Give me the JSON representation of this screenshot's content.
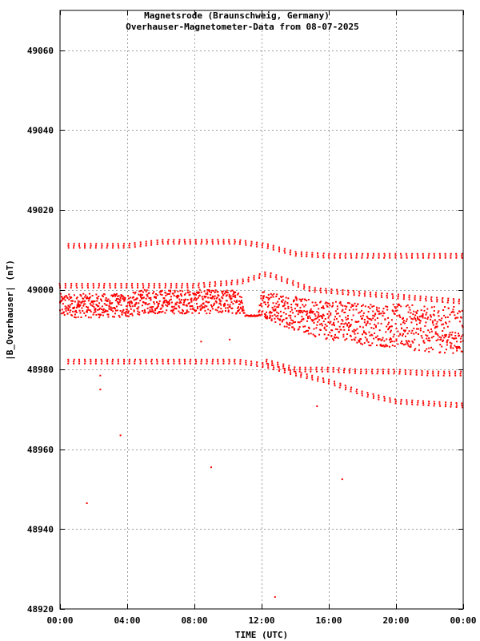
{
  "chart_data": {
    "type": "scatter",
    "title": "Magnetsrode (Braunschweig, Germany)",
    "subtitle": "Overhauser-Magnetometer-Data from 08-07-2025",
    "xlabel": "TIME (UTC)",
    "ylabel": "|B_Overhauser| (nT)",
    "xlim": [
      0,
      24
    ],
    "ylim": [
      48920,
      49070
    ],
    "x_ticks": [
      {
        "value": 0,
        "label": "00:00"
      },
      {
        "value": 4,
        "label": "04:00"
      },
      {
        "value": 8,
        "label": "08:00"
      },
      {
        "value": 12,
        "label": "12:00"
      },
      {
        "value": 16,
        "label": "16:00"
      },
      {
        "value": 20,
        "label": "20:00"
      },
      {
        "value": 24,
        "label": "00:00"
      }
    ],
    "y_ticks": [
      {
        "value": 48920,
        "label": "48920"
      },
      {
        "value": 48940,
        "label": "48940"
      },
      {
        "value": 48960,
        "label": "48960"
      },
      {
        "value": 48980,
        "label": "48980"
      },
      {
        "value": 49000,
        "label": "49000"
      },
      {
        "value": 49020,
        "label": "49020"
      },
      {
        "value": 49040,
        "label": "49040"
      },
      {
        "value": 49060,
        "label": "49060"
      }
    ],
    "grid": true,
    "marker_color": "#ff0000",
    "series": [
      {
        "band_points": [
          [
            0,
            48996
          ],
          [
            1,
            48996
          ],
          [
            2,
            48996
          ],
          [
            3,
            48996
          ],
          [
            4,
            48996
          ],
          [
            5,
            48997
          ],
          [
            6,
            48997
          ],
          [
            7,
            48997
          ],
          [
            8,
            48997
          ],
          [
            9,
            48997
          ],
          [
            10,
            48997
          ],
          [
            10.8,
            48997
          ],
          [
            11.0,
            48993.5
          ],
          [
            11.8,
            48993.5
          ],
          [
            12,
            48997
          ],
          [
            13,
            48995
          ],
          [
            14,
            48994
          ],
          [
            15,
            48993
          ],
          [
            16,
            48992.5
          ],
          [
            17,
            48992
          ],
          [
            18,
            48991.5
          ],
          [
            19,
            48991
          ],
          [
            20,
            48991
          ],
          [
            21,
            48990.5
          ],
          [
            22,
            48990
          ],
          [
            23,
            48990
          ],
          [
            24,
            48990
          ]
        ],
        "band_spread": [
          [
            0,
            6
          ],
          [
            10.8,
            6
          ],
          [
            11.0,
            0.3
          ],
          [
            11.8,
            0.3
          ],
          [
            12,
            7
          ],
          [
            16,
            10
          ],
          [
            20,
            11
          ],
          [
            24,
            12
          ]
        ],
        "upper_spike_track": [
          [
            0.5,
            49011
          ],
          [
            2,
            49011
          ],
          [
            4,
            49011
          ],
          [
            6,
            49012
          ],
          [
            8,
            49012
          ],
          [
            10.6,
            49012
          ],
          [
            12.3,
            49011
          ],
          [
            14,
            49009
          ],
          [
            16,
            49008.5
          ],
          [
            18,
            49008.5
          ],
          [
            20,
            49008.5
          ],
          [
            24,
            49008.5
          ]
        ],
        "mid_upper_track": [
          [
            0,
            49001
          ],
          [
            4,
            49001
          ],
          [
            8,
            49001
          ],
          [
            10.8,
            49002
          ],
          [
            12.3,
            49004
          ],
          [
            15,
            49000
          ],
          [
            18,
            48999
          ],
          [
            21,
            48998
          ],
          [
            24,
            48997
          ]
        ],
        "lower_spike_track": [
          [
            0.5,
            48982
          ],
          [
            2,
            48982
          ],
          [
            4,
            48982
          ],
          [
            6,
            48982
          ],
          [
            8,
            48982
          ],
          [
            10.6,
            48982
          ],
          [
            12.3,
            48981
          ],
          [
            14,
            48979
          ],
          [
            16,
            48977
          ],
          [
            18,
            48974
          ],
          [
            20,
            48972
          ],
          [
            22,
            48971.5
          ],
          [
            24,
            48971
          ]
        ],
        "mid_lower_track": [
          [
            12.3,
            48982
          ],
          [
            14,
            48980
          ],
          [
            16,
            48980
          ],
          [
            18,
            48979.5
          ],
          [
            20,
            48979.5
          ],
          [
            22,
            48979
          ],
          [
            24,
            48979
          ]
        ],
        "outliers": [
          [
            1.6,
            48946.5
          ],
          [
            2.4,
            48975
          ],
          [
            3.6,
            48963.5
          ],
          [
            9.0,
            48955.5
          ],
          [
            12.8,
            48923
          ],
          [
            16.8,
            48952.5
          ],
          [
            15.3,
            48970.8
          ],
          [
            10.1,
            48987.5
          ],
          [
            8.4,
            48987
          ],
          [
            2.4,
            48978.5
          ]
        ]
      }
    ]
  }
}
